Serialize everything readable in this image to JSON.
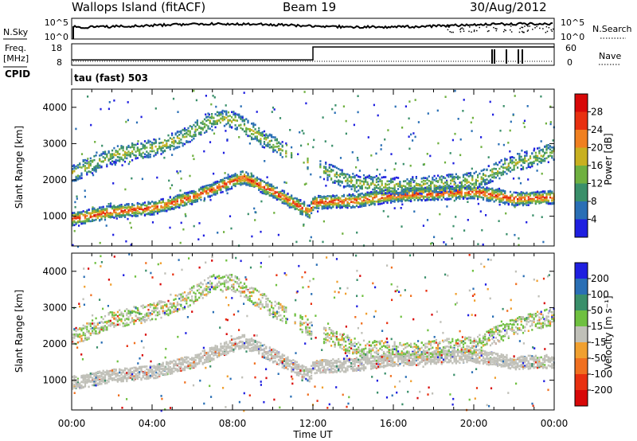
{
  "header": {
    "station": "Wallops Island (fitACF)",
    "beam": "Beam 19",
    "date": "30/Aug/2012"
  },
  "panels": {
    "nsky_label": "N.Sky",
    "nsearch_label": "N.Search",
    "nsky_ticks": [
      "10^5",
      "10^0"
    ],
    "nsearch_ticks": [
      "10^5",
      "10^0"
    ],
    "freq_label": "Freq.",
    "freq_unit": "[MHz]",
    "freq_ticks": [
      "18",
      "8"
    ],
    "nave_label": "Nave",
    "nave_ticks": [
      "60",
      "0"
    ],
    "cpid_label": "CPID",
    "cpid_text": "tau (fast) 503"
  },
  "axes": {
    "ylabel": "Slant Range [km]",
    "xlabel": "Time UT",
    "y_ticks": [
      "1000",
      "2000",
      "3000",
      "4000"
    ],
    "x_ticks": [
      "00:00",
      "04:00",
      "08:00",
      "12:00",
      "16:00",
      "20:00",
      "00:00"
    ]
  },
  "power_scale": {
    "label": "Power [dB]",
    "ticks": [
      "4",
      "8",
      "12",
      "16",
      "20",
      "24",
      "28"
    ],
    "colors": [
      "#1f1fe0",
      "#2a6fb5",
      "#3a8f6a",
      "#6fb040",
      "#c8b020",
      "#f08020",
      "#e83010",
      "#d80808"
    ]
  },
  "velocity_scale": {
    "label": "Velocity [m s⁻¹]",
    "ticks": [
      "200",
      "100",
      "50",
      "15",
      "-15",
      "-50",
      "-100",
      "-200"
    ],
    "colors": [
      "#1f1fe0",
      "#2a6fb5",
      "#3a8f6a",
      "#6fc040",
      "#c0c0b8",
      "#f0a030",
      "#f07020",
      "#e83010",
      "#d80808"
    ]
  },
  "chart_data": [
    {
      "type": "heatmap",
      "title": "",
      "quantity": "Power",
      "xlabel": "Time UT",
      "ylabel": "Slant Range [km]",
      "xlim": [
        "00:00",
        "24:00"
      ],
      "ylim": [
        180,
        4500
      ],
      "colorbar_label": "Power [dB]",
      "colorbar_ticks": [
        4,
        8,
        12,
        16,
        20,
        24,
        28
      ],
      "bands": [
        {
          "name": "lower",
          "x_hours": [
            0,
            2,
            4,
            6,
            8.5,
            10,
            11.8,
            12,
            14,
            16,
            18,
            20,
            22,
            24
          ],
          "range_km": [
            950,
            1150,
            1250,
            1550,
            2100,
            1700,
            1150,
            1400,
            1450,
            1600,
            1650,
            1700,
            1500,
            1550
          ],
          "peak_db": 28
        },
        {
          "name": "upper",
          "x_hours": [
            0,
            2,
            4,
            5.5,
            7,
            8,
            10,
            12,
            14,
            16,
            18,
            20,
            22,
            24
          ],
          "range_km": [
            2200,
            2700,
            2900,
            3200,
            3700,
            3700,
            3000,
            2400,
            1950,
            1850,
            1900,
            2000,
            2500,
            2800
          ],
          "peak_db": 20
        }
      ]
    },
    {
      "type": "heatmap",
      "title": "",
      "quantity": "Velocity",
      "xlabel": "Time UT",
      "ylabel": "Slant Range [km]",
      "xlim": [
        "00:00",
        "24:00"
      ],
      "ylim": [
        180,
        4500
      ],
      "colorbar_label": "Velocity [m s⁻¹]",
      "colorbar_ticks": [
        200,
        100,
        50,
        15,
        -15,
        -50,
        -100,
        -200
      ],
      "bands": [
        {
          "name": "lower",
          "x_hours": [
            0,
            2,
            4,
            6,
            8.5,
            10,
            11.8,
            12,
            14,
            16,
            18,
            20,
            22,
            24
          ],
          "range_km": [
            950,
            1150,
            1250,
            1550,
            2100,
            1700,
            1150,
            1400,
            1450,
            1600,
            1650,
            1700,
            1500,
            1550
          ],
          "dominant_velocity": 0
        },
        {
          "name": "upper",
          "x_hours": [
            0,
            2,
            4,
            5.5,
            7,
            8,
            10,
            12,
            14,
            16,
            18,
            20,
            22,
            24
          ],
          "range_km": [
            2200,
            2700,
            2900,
            3200,
            3700,
            3700,
            3000,
            2400,
            1950,
            1850,
            1900,
            2000,
            2500,
            2800
          ],
          "dominant_velocity": 15
        }
      ]
    },
    {
      "type": "line",
      "quantity": "Transmit frequency",
      "x_hours": [
        0,
        12,
        12,
        24
      ],
      "values_mhz": [
        10.5,
        10.5,
        16.5,
        16.5
      ],
      "ylim": [
        8,
        18
      ]
    }
  ]
}
